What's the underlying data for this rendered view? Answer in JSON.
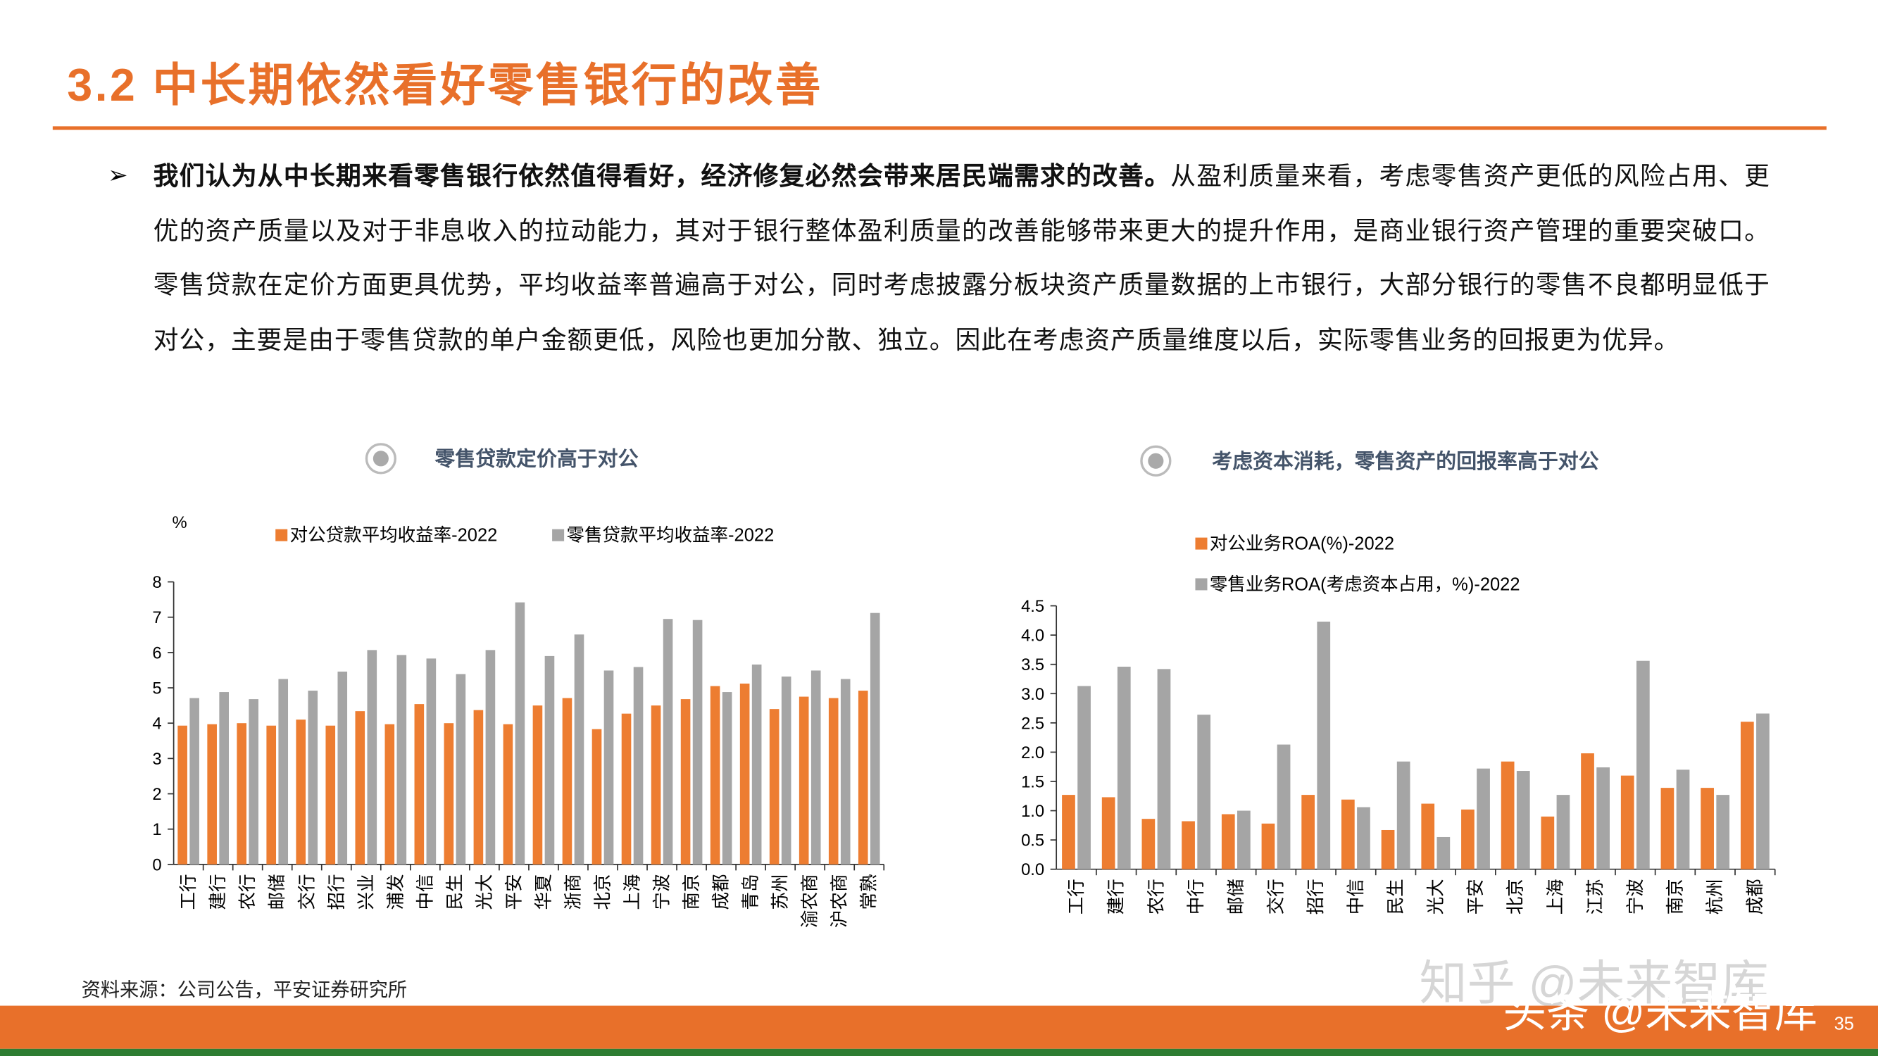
{
  "header": {
    "title": "3.2 中长期依然看好零售银行的改善"
  },
  "body": {
    "bullet": "➢",
    "bold": "我们认为从中长期来看零售银行依然值得看好，经济修复必然会带来居民端需求的改善。",
    "text": "从盈利质量来看，考虑零售资产更低的风险占用、更优的资产质量以及对于非息收入的拉动能力，其对于银行整体盈利质量的改善能够带来更大的提升作用，是商业银行资产管理的重要突破口。零售贷款在定价方面更具优势，平均收益率普遍高于对公，同时考虑披露分板块资产质量数据的上市银行，大部分银行的零售不良都明显低于对公，主要是由于零售贷款的单户金额更低，风险也更加分散、独立。因此在考虑资产质量维度以后，实际零售业务的回报更为优异。"
  },
  "footer": {
    "source": "资料来源：公司公告，平安证券研究所",
    "page": "35",
    "watermark_1": "知乎 @未来智库",
    "watermark_2": "头条 @未来智库"
  },
  "chart_data": [
    {
      "type": "bar",
      "title": "零售贷款定价高于对公",
      "y_label": "%",
      "legend": "top",
      "categories": [
        "工行",
        "建行",
        "农行",
        "邮储",
        "交行",
        "招行",
        "兴业",
        "浦发",
        "中信",
        "民生",
        "光大",
        "平安",
        "华夏",
        "浙商",
        "北京",
        "上海",
        "宁波",
        "南京",
        "成都",
        "青岛",
        "苏州",
        "渝农商",
        "沪农商",
        "常熟"
      ],
      "series": [
        {
          "name": "对公贷款平均收益率-2022",
          "color": "#ed7d31",
          "values": [
            3.93,
            3.97,
            4.0,
            3.93,
            4.1,
            3.93,
            4.34,
            3.97,
            4.54,
            4.0,
            4.37,
            3.97,
            4.5,
            4.71,
            3.83,
            4.27,
            4.5,
            4.68,
            5.05,
            5.12,
            4.4,
            4.75,
            4.71,
            4.92
          ]
        },
        {
          "name": "零售贷款平均收益率-2022",
          "color": "#a5a5a5",
          "values": [
            4.71,
            4.88,
            4.68,
            5.25,
            4.92,
            5.46,
            6.07,
            5.93,
            5.83,
            5.39,
            6.07,
            7.42,
            5.9,
            6.51,
            5.49,
            5.59,
            6.95,
            6.92,
            4.88,
            5.66,
            5.32,
            5.49,
            5.25,
            7.12
          ]
        }
      ],
      "ylim": [
        0,
        8
      ],
      "yticks": [
        0,
        1,
        2,
        3,
        4,
        5,
        6,
        7,
        8
      ]
    },
    {
      "type": "bar",
      "title": "考虑资本消耗，零售资产的回报率高于对公",
      "legend": "top",
      "categories": [
        "工行",
        "建行",
        "农行",
        "中行",
        "邮储",
        "交行",
        "招行",
        "中信",
        "民生",
        "光大",
        "平安",
        "北京",
        "上海",
        "江苏",
        "宁波",
        "南京",
        "杭州",
        "成都"
      ],
      "series": [
        {
          "name": "对公业务ROA(%)-2022",
          "color": "#ed7d31",
          "values": [
            1.27,
            1.23,
            0.86,
            0.82,
            0.94,
            0.78,
            1.27,
            1.19,
            0.67,
            1.12,
            1.02,
            1.84,
            0.9,
            1.98,
            1.6,
            1.39,
            1.39,
            2.52
          ]
        },
        {
          "name": "零售业务ROA(考虑资本占用，%)-2022",
          "color": "#a5a5a5",
          "values": [
            3.13,
            3.46,
            3.42,
            2.64,
            1.0,
            2.13,
            4.23,
            1.06,
            1.84,
            0.55,
            1.72,
            1.68,
            1.27,
            1.74,
            3.56,
            1.7,
            1.27,
            2.66
          ]
        }
      ],
      "ylim": [
        0,
        4.5
      ],
      "yticks": [
        {
          "value": 0,
          "label": "0.0"
        },
        0.5,
        {
          "value": 1,
          "label": "1.0"
        },
        1.5,
        {
          "value": 2,
          "label": "2.0"
        },
        2.5,
        {
          "value": 3,
          "label": "3.0"
        },
        3.5,
        {
          "value": 4,
          "label": "4.0"
        },
        4.5
      ]
    }
  ]
}
